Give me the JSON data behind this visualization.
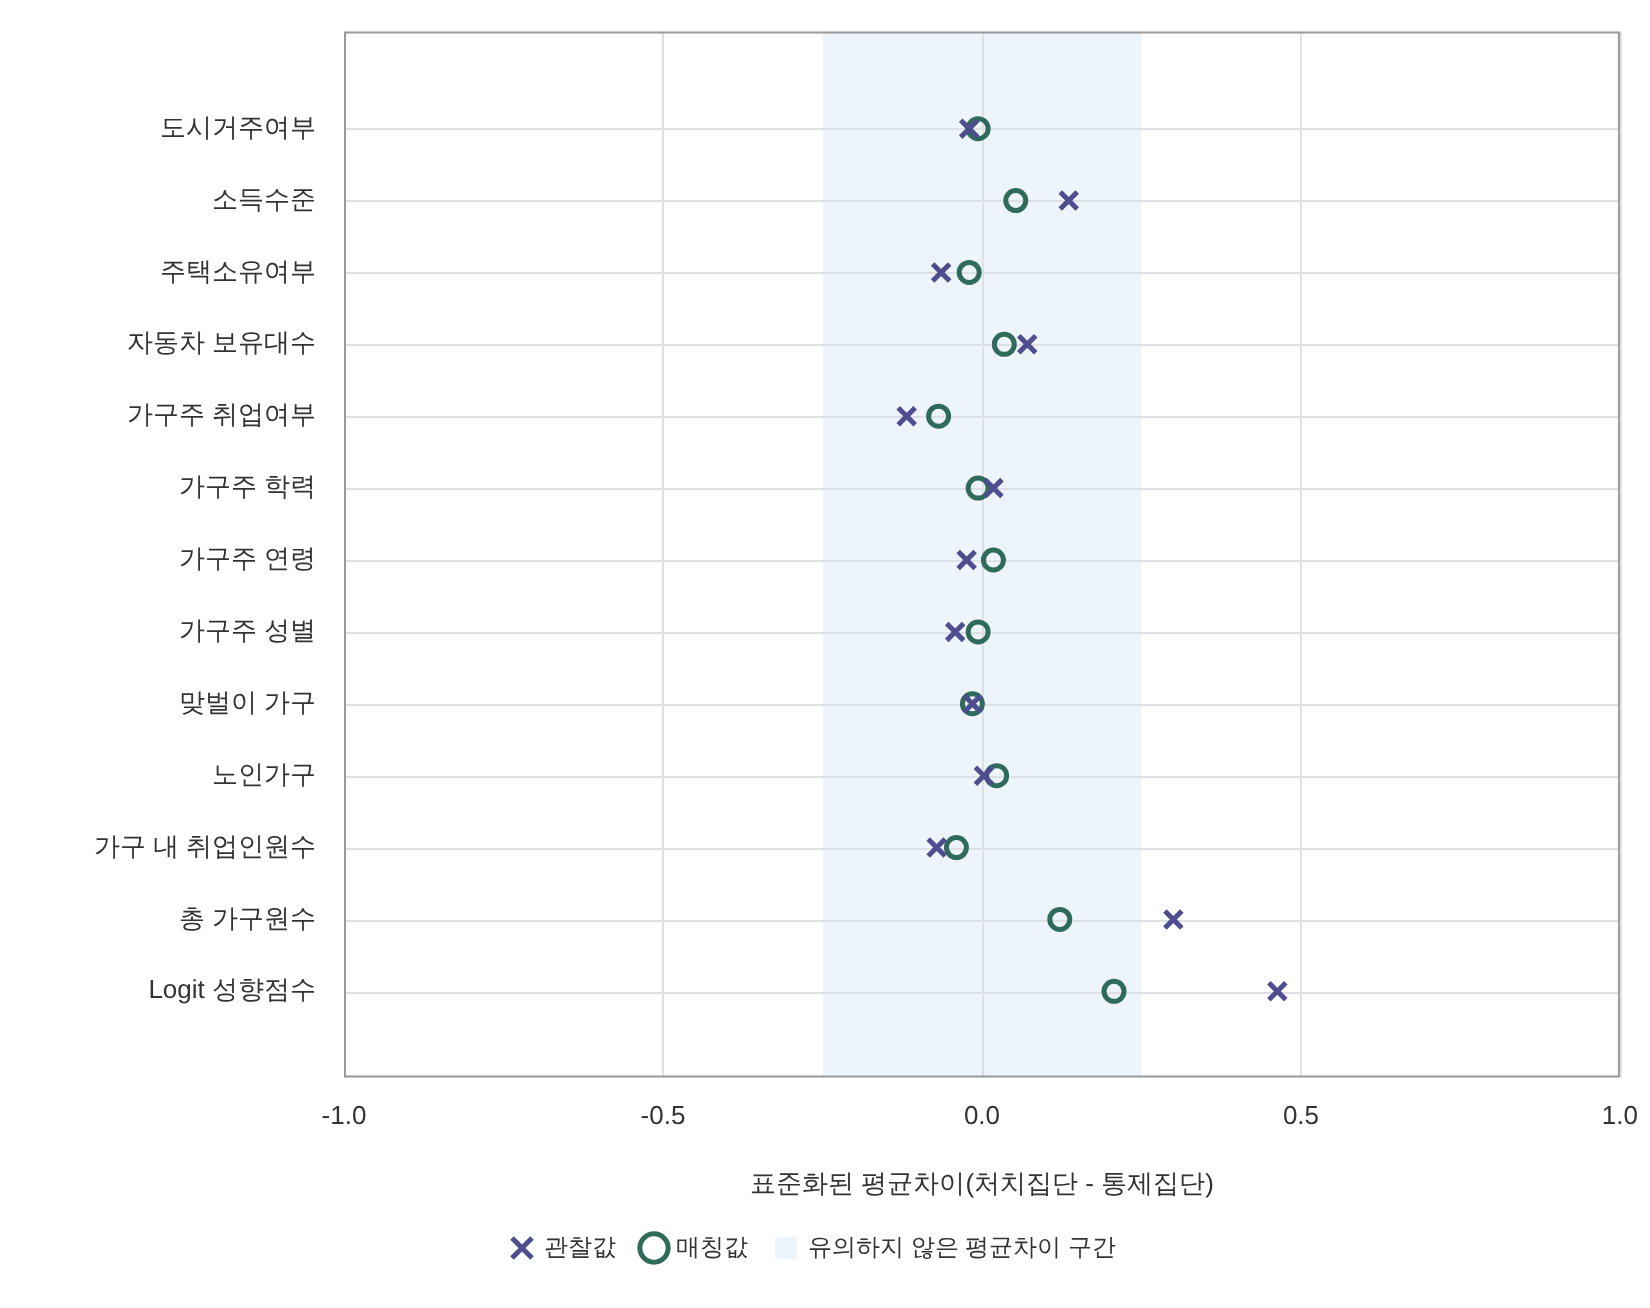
{
  "chart_data": {
    "type": "scatter",
    "xlabel": "표준화된 평균차이(처치집단 - 통제집단)",
    "categories": [
      "도시거주여부",
      "소득수준",
      "주택소유여부",
      "자동차 보유대수",
      "가구주 취업여부",
      "가구주 학력",
      "가구주 연령",
      "가구주 성별",
      "맞벌이 가구",
      "노인가구",
      "가구 내 취업인원수",
      "총 가구원수",
      "Logit 성향점수"
    ],
    "orientation": "horizontal",
    "series": [
      {
        "name": "관찰값",
        "color": "#4d4d8f",
        "marker": "cross",
        "values": [
          -0.02,
          0.136,
          -0.064,
          0.071,
          -0.118,
          0.018,
          -0.024,
          -0.042,
          -0.015,
          0.003,
          -0.071,
          0.3,
          0.463
        ]
      },
      {
        "name": "매칭값",
        "color": "#2f6b5a",
        "marker": "circle",
        "values": [
          -0.006,
          0.053,
          -0.02,
          0.035,
          -0.068,
          -0.006,
          0.018,
          -0.006,
          -0.015,
          0.023,
          -0.04,
          0.122,
          0.207
        ]
      }
    ],
    "bands": [
      {
        "axis": "x",
        "from": -0.25,
        "to": 0.25,
        "label": "유의하지 않은 평균차이 구간",
        "color": "#eef4fc"
      }
    ],
    "xlim": [
      -1.0,
      1.0
    ],
    "xticks": [
      {
        "value": -1,
        "label": "-1.0"
      },
      {
        "value": -0.5,
        "label": "-0.5"
      },
      {
        "value": 0,
        "label": "0.0"
      },
      {
        "value": 0.5,
        "label": "0.5"
      },
      {
        "value": 1,
        "label": "1.0"
      }
    ],
    "grid": true,
    "legend": "bottom"
  }
}
